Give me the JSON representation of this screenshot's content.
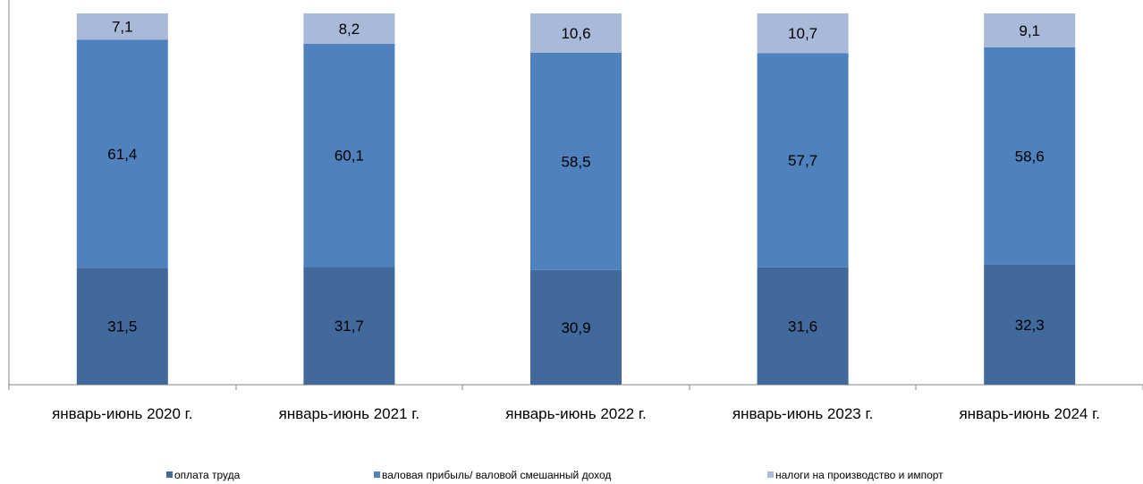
{
  "chart_data": {
    "type": "bar",
    "stacked": true,
    "categories": [
      "январь-июнь 2020 г.",
      "январь-июнь 2021 г.",
      "январь-июнь 2022 г.",
      "январь-июнь 2023 г.",
      "январь-июнь 2024 г."
    ],
    "series": [
      {
        "name": "оплата труда",
        "color": "#41699b",
        "values": [
          31.5,
          31.7,
          30.9,
          31.6,
          32.3
        ],
        "labels": [
          "31,5",
          "31,7",
          "30,9",
          "31,6",
          "32,3"
        ]
      },
      {
        "name": "валовая прибыль/ валовой смешанный доход",
        "color": "#4f81bd",
        "values": [
          61.4,
          60.1,
          58.5,
          57.7,
          58.6
        ],
        "labels": [
          "61,4",
          "60,1",
          "58,5",
          "57,7",
          "58,6"
        ]
      },
      {
        "name": "налоги на производство и импорт",
        "color": "#a9b9d9",
        "values": [
          7.1,
          8.2,
          10.6,
          10.7,
          9.1
        ],
        "labels": [
          "7,1",
          "8,2",
          "10,6",
          "10,7",
          "9,1"
        ]
      }
    ],
    "ylim": [
      0,
      100
    ],
    "grid": false,
    "legend_position": "bottom",
    "title": "",
    "xlabel": "",
    "ylabel": ""
  }
}
